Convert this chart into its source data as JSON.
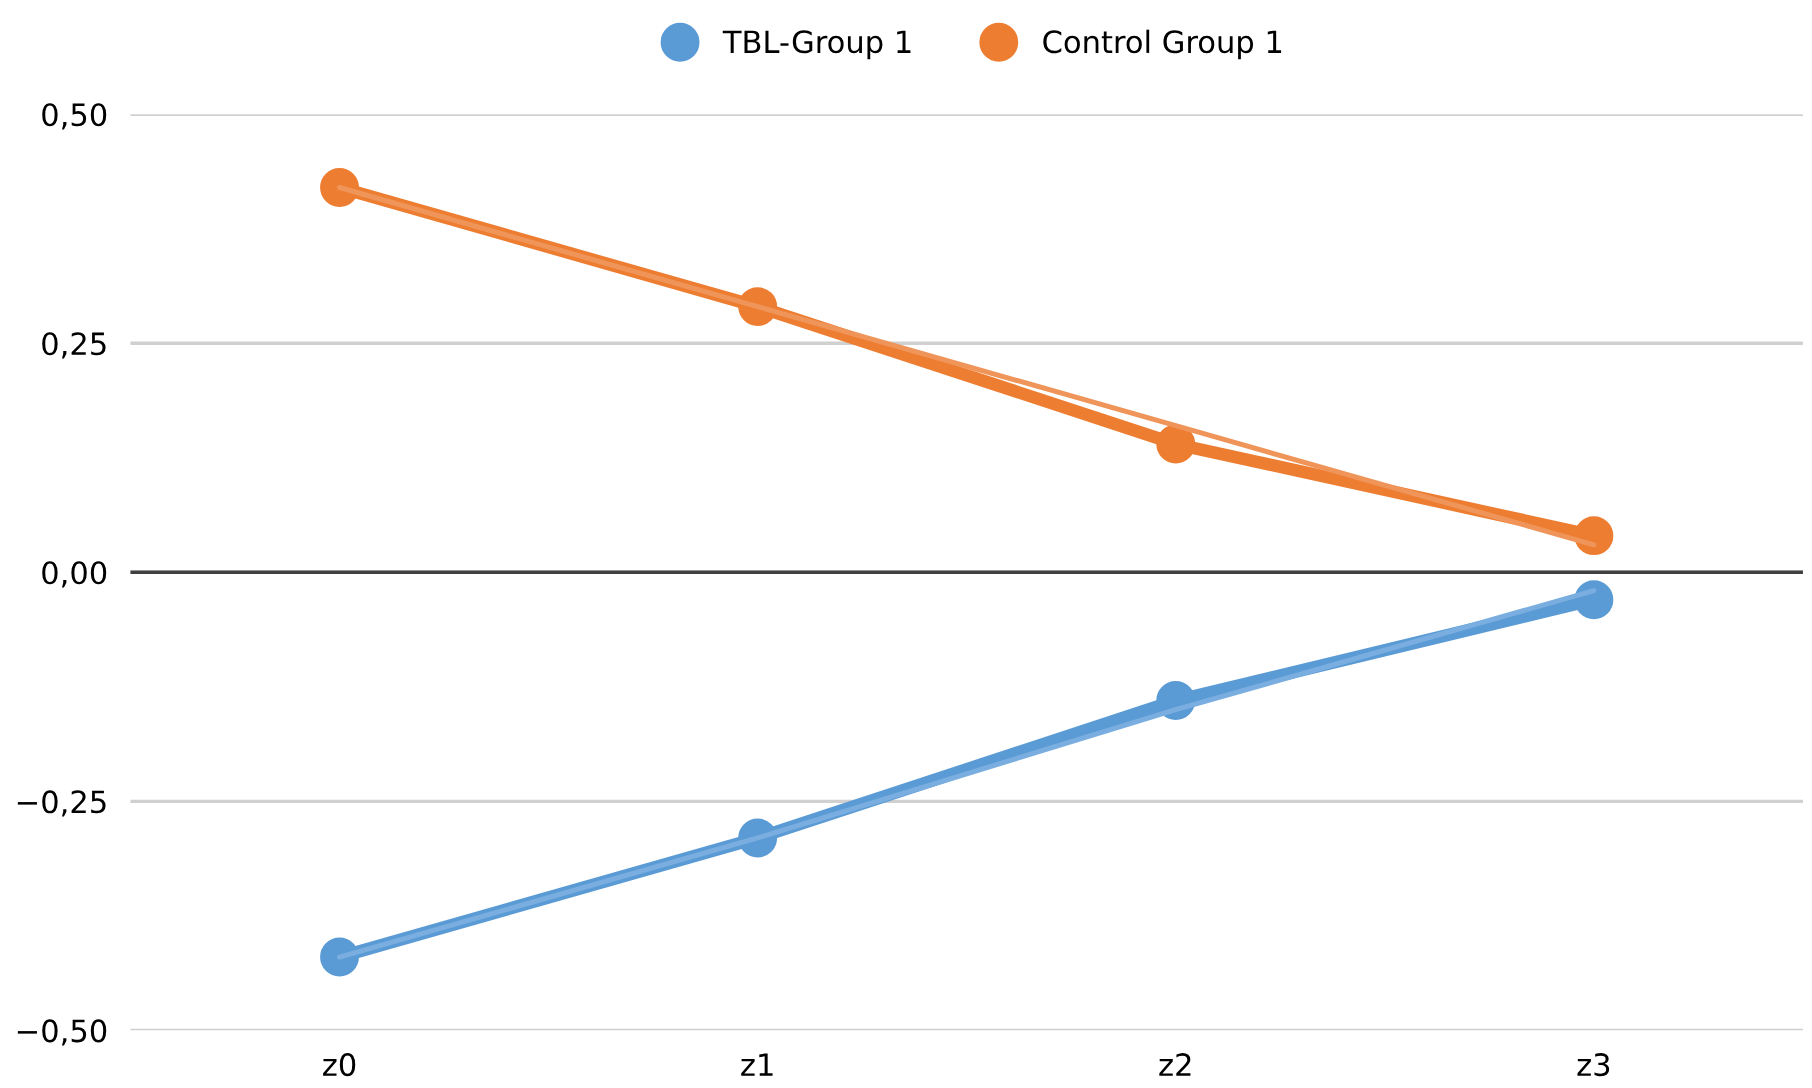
{
  "chart_data": {
    "type": "line",
    "categories": [
      "z0",
      "z1",
      "z2",
      "z3"
    ],
    "ylim": [
      -0.5,
      0.5
    ],
    "yticks": [
      {
        "value": -0.5,
        "label": "−0,50"
      },
      {
        "value": -0.25,
        "label": "−0,25"
      },
      {
        "value": 0,
        "label": "0,00"
      },
      {
        "value": 0.25,
        "label": "0,25"
      },
      {
        "value": 0.5,
        "label": "0,50"
      }
    ],
    "grid": "y",
    "legend": "top",
    "marker": "circle",
    "line_style": "solid",
    "ref_lines": [
      {
        "axis": "y",
        "value": 0,
        "color": "#404040"
      }
    ],
    "series": [
      {
        "name": "TBL-Group 1",
        "color": "#5b9bd5",
        "values": [
          -0.42,
          -0.29,
          -0.14,
          -0.03
        ]
      },
      {
        "name": "Control Group 1",
        "color": "#ed7d31",
        "values": [
          0.42,
          0.29,
          0.14,
          0.04
        ]
      },
      {
        "type": "line",
        "color": "#7aaee0",
        "values": [
          -0.42,
          -0.29,
          -0.15,
          -0.02
        ],
        "marker": "none"
      },
      {
        "type": "line",
        "color": "#f0955a",
        "values": [
          0.42,
          0.29,
          0.16,
          0.03
        ],
        "marker": "none"
      }
    ]
  }
}
